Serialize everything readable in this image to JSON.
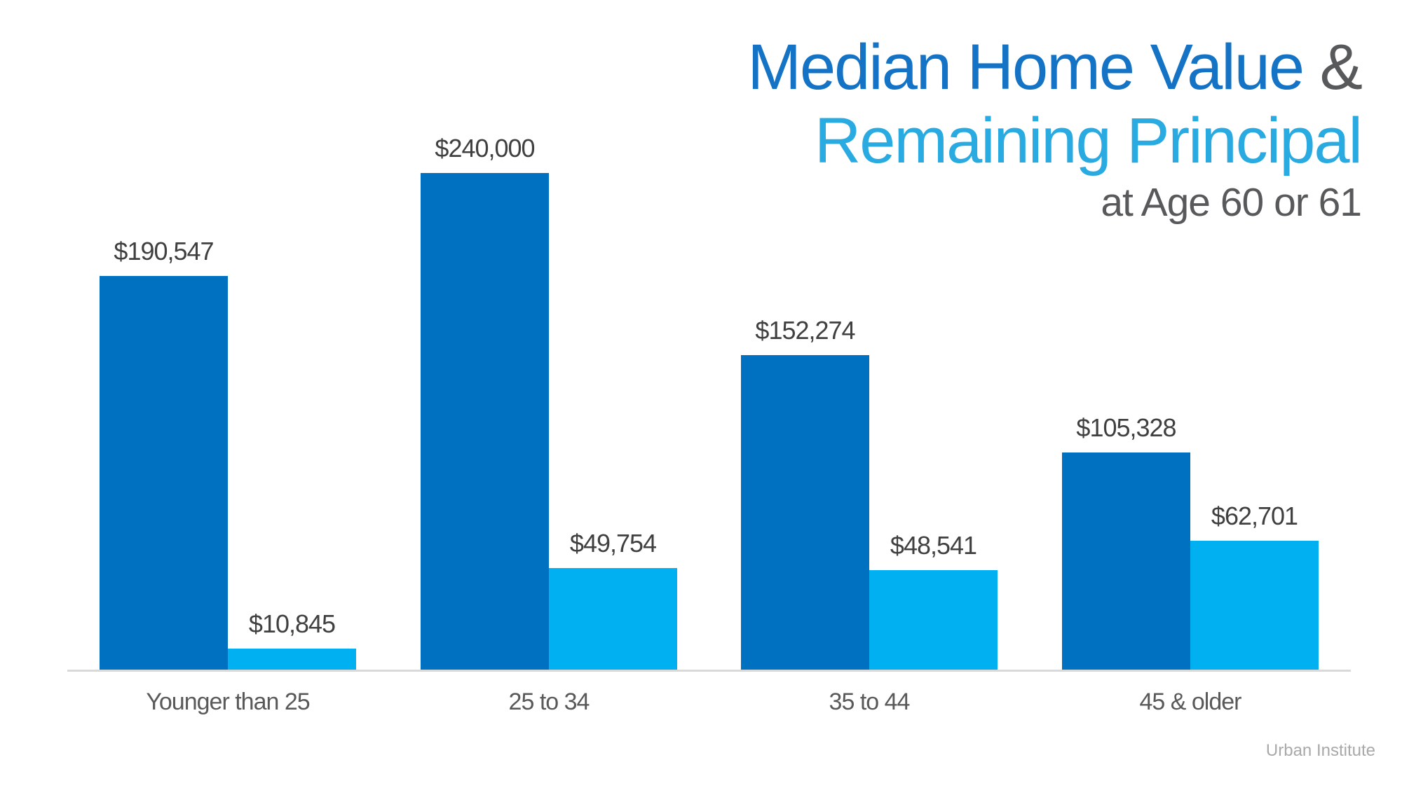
{
  "title": {
    "line1_main": "Median Home Value",
    "line1_amp": "&",
    "line2": "Remaining Principal",
    "line3": "at Age 60 or 61"
  },
  "footer": {
    "credit": "Urban Institute"
  },
  "colors": {
    "bar_dark_blue": "#0070C0",
    "bar_light_blue": "#00B0F0",
    "title_blue": "#1473C5",
    "title_light_blue": "#29ABE2",
    "heading_gray": "#58595B",
    "value_label_gray": "#404040",
    "category_gray": "#595959",
    "axis_line_gray": "#D9D9D9",
    "credit_gray": "#A9A9A9"
  },
  "chart_data": {
    "type": "bar",
    "title": "Median Home Value & Remaining Principal at Age 60 or 61",
    "categories": [
      "Younger than 25",
      "25 to 34",
      "35 to 44",
      "45 & older"
    ],
    "series": [
      {
        "name": "Median Home Value",
        "color": "#0070C0",
        "values": [
          190547,
          240000,
          152274,
          105328
        ],
        "labels": [
          "$190,547",
          "$240,000",
          "$152,274",
          "$105,328"
        ]
      },
      {
        "name": "Remaining Principal",
        "color": "#00B0F0",
        "values": [
          10845,
          49754,
          48541,
          62701
        ],
        "labels": [
          "$10,845",
          "$49,754",
          "$48,541",
          "$62,701"
        ]
      }
    ],
    "ylim": [
      0,
      240000
    ],
    "grid": false,
    "legend": false,
    "value_labels_shown": true,
    "source": "Urban Institute"
  }
}
